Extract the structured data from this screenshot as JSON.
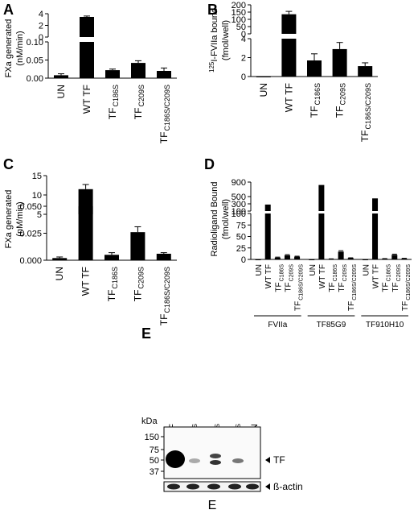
{
  "panels": {
    "A": {
      "letter": "A",
      "ylabel_line1": "FXa generated",
      "ylabel_line2": "(nM/min)",
      "chart_data": {
        "type": "bar",
        "axis": "broken",
        "categories": [
          {
            "main": "UN",
            "sub": ""
          },
          {
            "main": "WT TF",
            "sub": ""
          },
          {
            "main": "TF",
            "sub": "C186S"
          },
          {
            "main": "TF",
            "sub": "C209S"
          },
          {
            "main": "TF",
            "sub": "C186S/C209S"
          }
        ],
        "values": [
          0.008,
          3.45,
          0.022,
          0.042,
          0.02
        ],
        "errors": [
          0.004,
          0.15,
          0.003,
          0.006,
          0.008
        ],
        "lower_ticks": [
          0.0,
          0.05,
          0.1
        ],
        "lower_tick_labels": [
          "0.00",
          "0.05",
          "0.10"
        ],
        "lower_ylim": [
          0,
          0.1
        ],
        "upper_ticks": [
          0,
          2,
          4
        ],
        "upper_tick_labels": [
          "0",
          "2",
          "4"
        ],
        "upper_ylim": [
          0,
          4
        ]
      }
    },
    "B": {
      "letter": "B",
      "ylabel_line1": "125I-FVIIa bound",
      "ylabel_sup": "125",
      "ylabel_main": "I-FVIIa bound",
      "ylabel_line2": "(fmol/well)",
      "chart_data": {
        "type": "bar",
        "axis": "broken",
        "categories": [
          {
            "main": "UN",
            "sub": ""
          },
          {
            "main": "WT TF",
            "sub": ""
          },
          {
            "main": "TF",
            "sub": "C186S"
          },
          {
            "main": "TF",
            "sub": "C209S"
          },
          {
            "main": "TF",
            "sub": "C186S/C209S"
          }
        ],
        "values": [
          0.0,
          135,
          1.7,
          2.9,
          1.1
        ],
        "errors": [
          0.0,
          20,
          0.7,
          0.7,
          0.35
        ],
        "lower_ticks": [
          0,
          2,
          4
        ],
        "lower_tick_labels": [
          "0",
          "2",
          "4"
        ],
        "lower_ylim": [
          0,
          4
        ],
        "upper_ticks": [
          0,
          50,
          100,
          150,
          200
        ],
        "upper_tick_labels": [
          "0",
          "50",
          "100",
          "150",
          "200"
        ],
        "upper_ylim": [
          0,
          200
        ]
      }
    },
    "C": {
      "letter": "C",
      "ylabel_line1": "FXa generated",
      "ylabel_line2": "(nM/min)",
      "chart_data": {
        "type": "bar",
        "axis": "broken",
        "categories": [
          {
            "main": "UN",
            "sub": ""
          },
          {
            "main": "WT TF",
            "sub": ""
          },
          {
            "main": "TF",
            "sub": "C186S"
          },
          {
            "main": "TF",
            "sub": "C209S"
          },
          {
            "main": "TF",
            "sub": "C186S/C209S"
          }
        ],
        "values": [
          0.002,
          11.5,
          0.005,
          0.026,
          0.006
        ],
        "errors": [
          0.001,
          1.2,
          0.002,
          0.005,
          0.001
        ],
        "lower_ticks": [
          0.0,
          0.025,
          0.05
        ],
        "lower_tick_labels": [
          "0.000",
          "0.025",
          "0.050"
        ],
        "lower_ylim": [
          0,
          0.05
        ],
        "upper_ticks": [
          5,
          10,
          15
        ],
        "upper_tick_labels": [
          "5",
          "10",
          "15"
        ],
        "upper_ylim": [
          5,
          15
        ]
      }
    },
    "D": {
      "letter": "D",
      "ylabel_line1": "Radioligand Bound",
      "ylabel_line2": "(fmol/well)",
      "chart_data": {
        "type": "bar",
        "axis": "broken",
        "groups": [
          {
            "label": "FVIIa",
            "values": [
              0,
              280,
              4,
              9,
              6
            ],
            "errors": [
              0,
              20,
              1,
              1.5,
              1
            ]
          },
          {
            "label": "TF85G9",
            "values": [
              0,
              820,
              1,
              17,
              3
            ],
            "errors": [
              0,
              30,
              0.3,
              2,
              0.5
            ]
          },
          {
            "label": "TF910H10",
            "values": [
              0,
              450,
              1.5,
              10,
              2
            ],
            "errors": [
              0,
              25,
              0.3,
              1.5,
              0.4
            ]
          }
        ],
        "categories": [
          {
            "main": "UN",
            "sub": ""
          },
          {
            "main": "WT TF",
            "sub": ""
          },
          {
            "main": "TF",
            "sub": "C186S"
          },
          {
            "main": "TF",
            "sub": "C209S"
          },
          {
            "main": "TF",
            "sub": "C186S/C209S"
          }
        ],
        "lower_ticks": [
          0,
          25,
          50,
          75,
          100
        ],
        "lower_tick_labels": [
          "0",
          "25",
          "50",
          "75",
          "100"
        ],
        "lower_ylim": [
          0,
          100
        ],
        "upper_ticks": [
          100,
          300,
          500,
          900
        ],
        "upper_tick_labels": [
          "100",
          "300",
          "500",
          "900"
        ],
        "upper_ylim": [
          100,
          900
        ]
      }
    },
    "E": {
      "letter": "E",
      "kda_label": "kDa",
      "markers": [
        "150",
        "75",
        "50",
        "37"
      ],
      "lanes": [
        {
          "main": "WT TF",
          "sub": ""
        },
        {
          "main": "TF",
          "sub": "C186S"
        },
        {
          "main": "TF",
          "sub": "C209S"
        },
        {
          "main": "TF",
          "sub": "C186S/C209S"
        },
        {
          "main": "UN",
          "sub": ""
        }
      ],
      "tf_label": "TF",
      "actin_label": "ß-actin",
      "caption": "E"
    }
  }
}
